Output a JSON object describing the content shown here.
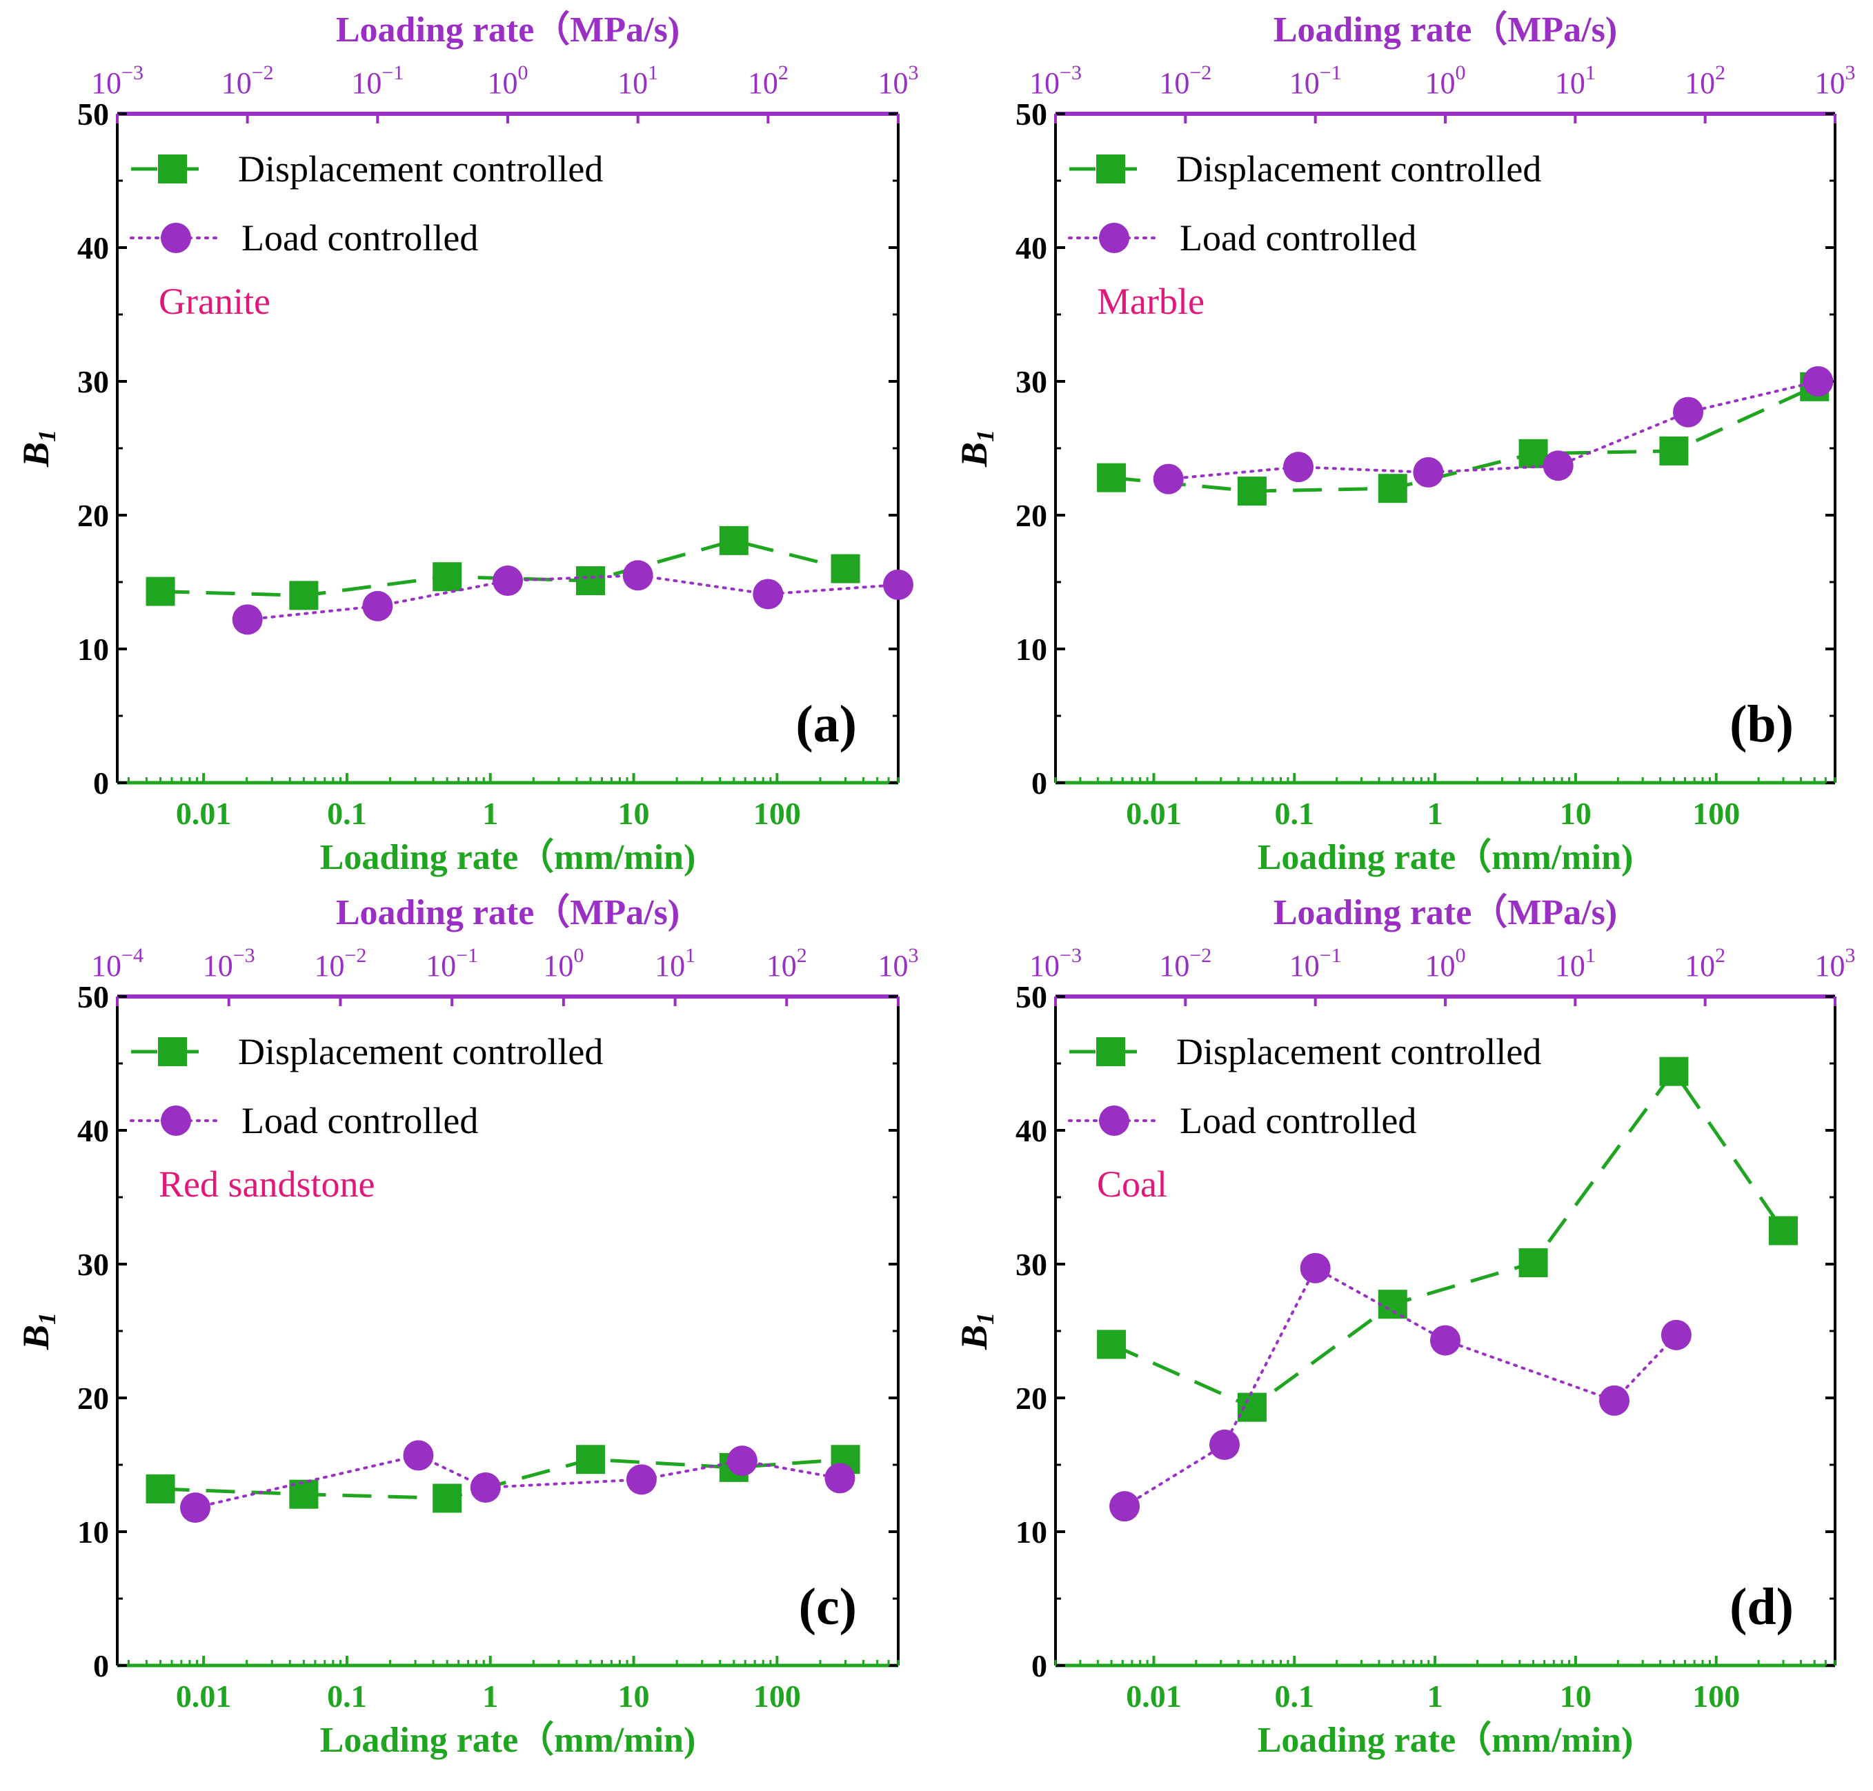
{
  "colors": {
    "displacement": "#1fa51f",
    "load": "#9a2fc4",
    "top_axis": "#9a2fc4",
    "bottom_axis": "#1fa51f",
    "material_label": "#e0187a",
    "frame": "#000000"
  },
  "common": {
    "legend_displacement": "Displacement controlled",
    "legend_load": "Load controlled",
    "bottom_axis_label": "Loading rate（mm/min)",
    "top_axis_label": "Loading rate（MPa/s)",
    "y_label": "B",
    "y_label_sub": "1",
    "y_ticks": [
      "0",
      "10",
      "20",
      "30",
      "40",
      "50"
    ],
    "bottom_ticks": [
      "0.01",
      "0.1",
      "1",
      "10",
      "100"
    ]
  },
  "chart_data": [
    {
      "type": "line",
      "panel_label": "(a)",
      "material": "Granite",
      "xlabel": "Loading rate（mm/min)",
      "x2label": "Loading rate（MPa/s)",
      "ylabel": "B1",
      "ylim": [
        0,
        50
      ],
      "x_scale": "log",
      "xlim": [
        0.0025,
        700
      ],
      "x2_scale": "log",
      "x2lim": [
        0.001,
        1000
      ],
      "x2_tick_exponents": [
        -3,
        -2,
        -1,
        0,
        1,
        2,
        3
      ],
      "legend_position": "top-left",
      "series": [
        {
          "name": "Displacement controlled",
          "axis": "bottom (mm/min)",
          "marker": "square",
          "line": "dashed",
          "x": [
            0.005,
            0.05,
            0.5,
            5,
            50,
            300
          ],
          "y": [
            14.3,
            14.0,
            15.4,
            15.1,
            18.1,
            16.0
          ]
        },
        {
          "name": "Load controlled",
          "axis": "top (MPa/s)",
          "marker": "circle",
          "line": "dotted",
          "x": [
            0.01,
            0.1,
            1,
            10,
            100,
            1000
          ],
          "y": [
            12.2,
            13.2,
            15.1,
            15.5,
            14.1,
            14.8
          ]
        }
      ]
    },
    {
      "type": "line",
      "panel_label": "(b)",
      "material": "Marble",
      "xlabel": "Loading rate（mm/min)",
      "x2label": "Loading rate（MPa/s)",
      "ylabel": "B1",
      "ylim": [
        0,
        50
      ],
      "x_scale": "log",
      "xlim": [
        0.002,
        700
      ],
      "x2_scale": "log",
      "x2lim": [
        0.001,
        1000
      ],
      "x2_tick_exponents": [
        -3,
        -2,
        -1,
        0,
        1,
        2,
        3
      ],
      "legend_position": "top-left",
      "series": [
        {
          "name": "Displacement controlled",
          "axis": "bottom (mm/min)",
          "marker": "square",
          "line": "dashed",
          "x": [
            0.005,
            0.05,
            0.5,
            5,
            50,
            500
          ],
          "y": [
            22.8,
            21.8,
            22.0,
            24.6,
            24.8,
            29.6
          ]
        },
        {
          "name": "Load controlled",
          "axis": "top (MPa/s)",
          "marker": "circle",
          "line": "dotted",
          "x": [
            0.0074,
            0.074,
            0.74,
            7.4,
            74,
            740
          ],
          "y": [
            22.7,
            23.6,
            23.2,
            23.7,
            27.7,
            30.0
          ]
        }
      ]
    },
    {
      "type": "line",
      "panel_label": "(c)",
      "material": "Red sandstone",
      "xlabel": "Loading rate（mm/min)",
      "x2label": "Loading rate（MPa/s)",
      "ylabel": "B1",
      "ylim": [
        0,
        50
      ],
      "x_scale": "log",
      "xlim": [
        0.0025,
        700
      ],
      "x2_scale": "log",
      "x2lim": [
        0.0001,
        1000
      ],
      "x2_tick_exponents": [
        -4,
        -3,
        -2,
        -1,
        0,
        1,
        2,
        3
      ],
      "legend_position": "top-left",
      "series": [
        {
          "name": "Displacement controlled",
          "axis": "bottom (mm/min)",
          "marker": "square",
          "line": "dashed",
          "x": [
            0.005,
            0.05,
            0.5,
            5,
            50,
            300
          ],
          "y": [
            13.2,
            12.8,
            12.5,
            15.4,
            14.8,
            15.4
          ]
        },
        {
          "name": "Load controlled",
          "axis": "top (MPa/s)",
          "marker": "circle",
          "line": "dotted",
          "x": [
            0.0005,
            0.05,
            0.2,
            5,
            40,
            300
          ],
          "y": [
            11.8,
            15.7,
            13.3,
            13.9,
            15.3,
            14.0
          ]
        }
      ]
    },
    {
      "type": "line",
      "panel_label": "(d)",
      "material": "Coal",
      "xlabel": "Loading rate（mm/min)",
      "x2label": "Loading rate（MPa/s)",
      "ylabel": "B1",
      "ylim": [
        0,
        50
      ],
      "x_scale": "log",
      "xlim": [
        0.002,
        700
      ],
      "x2_scale": "log",
      "x2lim": [
        0.001,
        1000
      ],
      "x2_tick_exponents": [
        -3,
        -2,
        -1,
        0,
        1,
        2,
        3
      ],
      "legend_position": "top-left",
      "series": [
        {
          "name": "Displacement controlled",
          "axis": "bottom (mm/min)",
          "marker": "square",
          "line": "dashed",
          "x": [
            0.005,
            0.05,
            0.5,
            5,
            50,
            300
          ],
          "y": [
            24.0,
            19.3,
            27.0,
            30.1,
            44.4,
            32.5
          ]
        },
        {
          "name": "Load controlled",
          "axis": "top (MPa/s)",
          "marker": "circle",
          "line": "dotted",
          "x": [
            0.0034,
            0.02,
            0.1,
            1,
            20,
            60
          ],
          "y": [
            11.9,
            16.5,
            29.7,
            24.3,
            19.8,
            24.7
          ]
        }
      ]
    }
  ]
}
